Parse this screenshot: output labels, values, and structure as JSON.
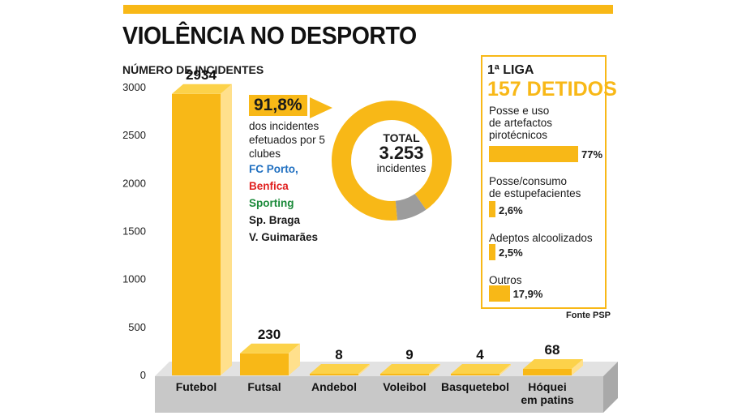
{
  "header": {
    "title": "VIOLÊNCIA NO DESPORTO"
  },
  "colors": {
    "accent": "#f8b817",
    "gray": "#9c9c9c",
    "porto": "#1f6fc0",
    "benfica": "#e0201f",
    "sporting": "#1b8a3a"
  },
  "chart_data": [
    {
      "type": "bar",
      "ylabel": "NÚMERO DE INCIDENTES",
      "ylim": [
        0,
        3000
      ],
      "yticks": [
        "0",
        "500",
        "1000",
        "1500",
        "2000",
        "2500",
        "3000"
      ],
      "categories": [
        "Futebol",
        "Futsal",
        "Andebol",
        "Voleibol",
        "Basquetebol",
        "Hóquei em patins"
      ],
      "values": [
        2934,
        230,
        8,
        9,
        4,
        68
      ],
      "value_labels": [
        "2934",
        "230",
        "8",
        "9",
        "4",
        "68"
      ],
      "grid": false
    },
    {
      "type": "pie",
      "center_label": "TOTAL",
      "center_value": "3.253",
      "center_sub": "incidentes",
      "slices": [
        91.8,
        8.2
      ]
    },
    {
      "type": "bar",
      "title": "1ª LIGA",
      "subtitle": "157 DETIDOS",
      "categories": [
        "Posse e uso\nde artefactos\npirotécnicos",
        "Posse/consumo\nde estupefacientes",
        "Adeptos alcoolizados",
        "Outros"
      ],
      "values": [
        77,
        2.6,
        2.5,
        17.9
      ],
      "value_labels": [
        "77%",
        "2,6%",
        "2,5%",
        "17,9%"
      ]
    }
  ],
  "callout": {
    "percent": "91,8%",
    "text": "dos incidentes efetuados por 5 clubes",
    "clubs": [
      "FC Porto,",
      "Benfica",
      "Sporting",
      "Sp. Braga",
      "V. Guimarães"
    ]
  },
  "source": "Fonte PSP"
}
